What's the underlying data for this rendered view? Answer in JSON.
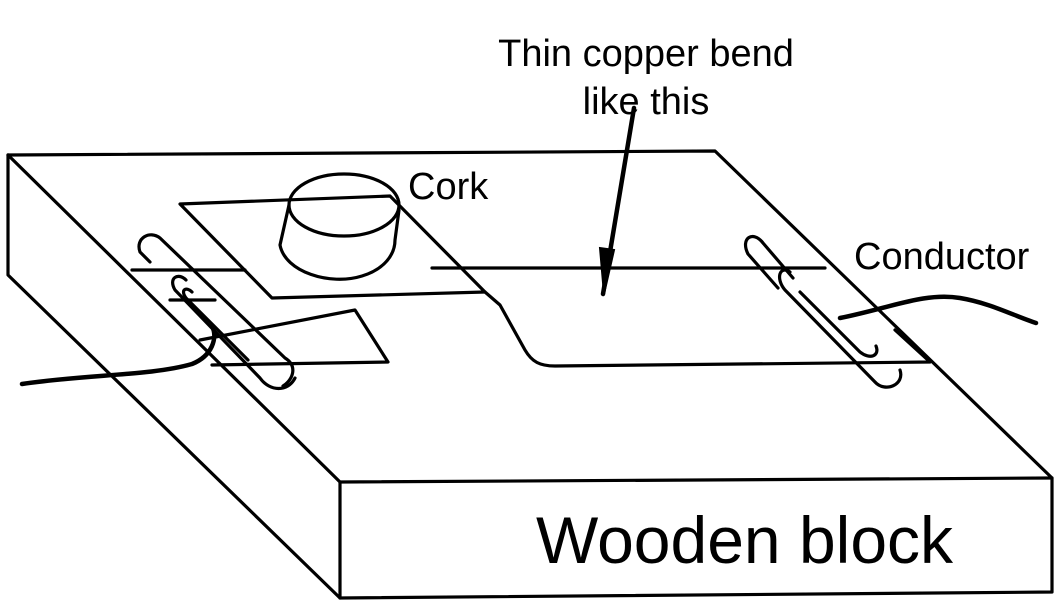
{
  "labels": {
    "copper_line1": "Thin copper bend",
    "copper_line2": "like this",
    "cork": "Cork",
    "conductor": "Conductor",
    "wooden_block": "Wooden block"
  },
  "colors": {
    "ink": "#000000",
    "background": "#ffffff"
  }
}
